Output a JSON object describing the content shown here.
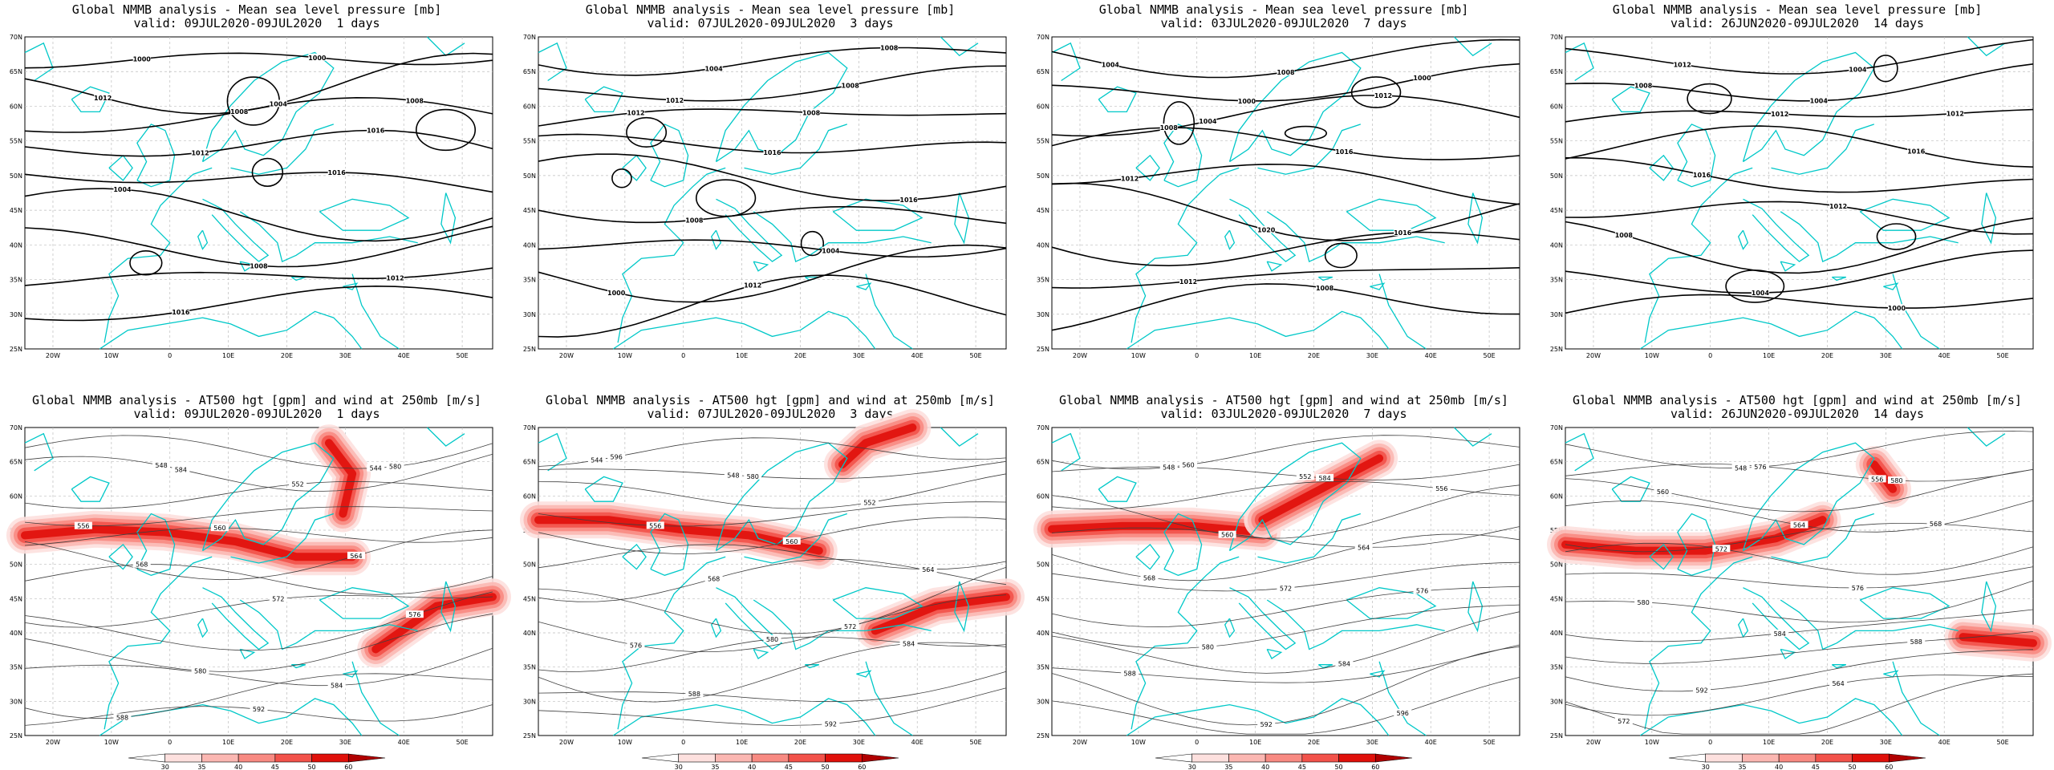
{
  "panels": [
    {
      "title1": "Global NMMB analysis - Mean sea level pressure [mb]",
      "title2": "valid: 09JUL2020-09JUL2020  1 days",
      "kind": "mslp",
      "seed": 1,
      "labels": [
        "1000",
        "1004",
        "1008",
        "1012",
        "1016",
        "1004",
        "1008",
        "1012",
        "1016",
        "1000",
        "1012",
        "1008",
        "1016"
      ]
    },
    {
      "title1": "Global NMMB analysis - Mean sea level pressure [mb]",
      "title2": "valid: 07JUL2020-09JUL2020  3 days",
      "kind": "mslp",
      "seed": 2,
      "labels": [
        "1004",
        "1008",
        "1012",
        "1016",
        "1016",
        "1008",
        "1004",
        "1000",
        "1012",
        "1008",
        "1012",
        "1008"
      ]
    },
    {
      "title1": "Global NMMB analysis - Mean sea level pressure [mb]",
      "title2": "valid: 03JUL2020-09JUL2020  7 days",
      "kind": "mslp",
      "seed": 3,
      "labels": [
        "1008",
        "1000",
        "1004",
        "1016",
        "1012",
        "1020",
        "1016",
        "1012",
        "1008",
        "1004",
        "1000",
        "1012",
        "1008"
      ]
    },
    {
      "title1": "Global NMMB analysis - Mean sea level pressure [mb]",
      "title2": "valid: 26JUN2020-09JUL2020  14 days",
      "kind": "mslp",
      "seed": 4,
      "labels": [
        "1004",
        "1008",
        "1012",
        "1016",
        "1016",
        "1012",
        "1008",
        "1004",
        "1000",
        "1012",
        "1004",
        "1012"
      ]
    },
    {
      "title1": "Global NMMB analysis - AT500 hgt [gpm] and wind at 250mb [m/s]",
      "title2": "valid: 09JUL2020-09JUL2020  1 days",
      "kind": "z500",
      "seed": 5,
      "labels": [
        "544",
        "548",
        "552",
        "556",
        "560",
        "564",
        "568",
        "572",
        "576",
        "580",
        "584",
        "588",
        "592",
        "580",
        "584"
      ]
    },
    {
      "title1": "Global NMMB analysis - AT500 hgt [gpm] and wind at 250mb [m/s]",
      "title2": "valid: 07JUL2020-09JUL2020  3 days",
      "kind": "z500",
      "seed": 6,
      "labels": [
        "544",
        "548",
        "552",
        "556",
        "560",
        "564",
        "568",
        "572",
        "576",
        "580",
        "584",
        "588",
        "592",
        "596",
        "580"
      ]
    },
    {
      "title1": "Global NMMB analysis - AT500 hgt [gpm] and wind at 250mb [m/s]",
      "title2": "valid: 03JUL2020-09JUL2020  7 days",
      "kind": "z500",
      "seed": 7,
      "labels": [
        "548",
        "552",
        "556",
        "560",
        "564",
        "568",
        "572",
        "576",
        "580",
        "584",
        "588",
        "592",
        "596",
        "560",
        "584"
      ]
    },
    {
      "title1": "Global NMMB analysis - AT500 hgt [gpm] and wind at 250mb [m/s]",
      "title2": "valid: 26JUN2020-09JUL2020  14 days",
      "kind": "z500",
      "seed": 8,
      "labels": [
        "548",
        "556",
        "560",
        "564",
        "568",
        "572",
        "576",
        "580",
        "584",
        "588",
        "592",
        "564",
        "572",
        "576",
        "580"
      ]
    }
  ],
  "axes": {
    "lat_ticks": [
      "70N",
      "65N",
      "60N",
      "55N",
      "50N",
      "45N",
      "40N",
      "35N",
      "30N",
      "25N"
    ],
    "lon_ticks": [
      "20W",
      "10W",
      "0",
      "10E",
      "20E",
      "30E",
      "40E",
      "50E"
    ]
  },
  "colorbar": {
    "ticks": [
      "30",
      "35",
      "40",
      "45",
      "50",
      "60"
    ],
    "colors": [
      "#ffffff",
      "#fde0de",
      "#fbb7b2",
      "#f88a82",
      "#f2524a",
      "#e0100a",
      "#b00000"
    ]
  },
  "colors": {
    "coast": "#00c8c8",
    "mslp_contour": "#000000",
    "z500_contour": "#404040",
    "grid": "#bdbdbd"
  }
}
